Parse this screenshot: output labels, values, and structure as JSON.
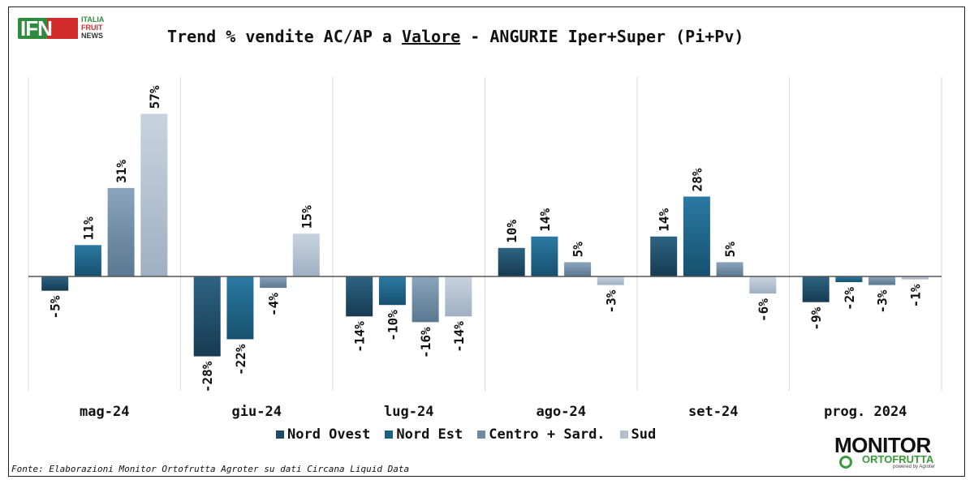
{
  "header": {
    "title_prefix": "Trend % vendite AC/AP a ",
    "title_underlined": "Valore",
    "title_suffix": " - ANGURIE Iper+Super (Pi+Pv)"
  },
  "logos": {
    "ifn_letters": "IFN",
    "ifn_line1": "ITALIA",
    "ifn_line2": "FRUIT",
    "ifn_line3": "NEWS",
    "monitor_line1": "MONITOR",
    "monitor_line2": "ORTOFRUTTA",
    "monitor_line3": "powered by Agroter"
  },
  "source": "Fonte: Elaborazioni Monitor Ortofrutta Agroter su dati Circana Liquid Data",
  "colors": {
    "nord_ovest": "#1e4a66",
    "nord_est": "#1c5f82",
    "centro_sard": "#6d8aa3",
    "sud": "#b3c0cf"
  },
  "chart_data": {
    "type": "bar",
    "categories": [
      "mag-24",
      "giu-24",
      "lug-24",
      "ago-24",
      "set-24",
      "prog. 2024"
    ],
    "series": [
      {
        "name": "Nord Ovest",
        "values": [
          -5,
          -28,
          -14,
          10,
          14,
          -9
        ],
        "labels": [
          "-5%",
          "-28%",
          "-14%",
          "10%",
          "14%",
          "-9%"
        ]
      },
      {
        "name": "Nord Est",
        "values": [
          11,
          -22,
          -10,
          14,
          28,
          -2
        ],
        "labels": [
          "11%",
          "-22%",
          "-10%",
          "14%",
          "28%",
          "-2%"
        ]
      },
      {
        "name": "Centro + Sard.",
        "values": [
          31,
          -4,
          -16,
          5,
          5,
          -3
        ],
        "labels": [
          "31%",
          "-4%",
          "-16%",
          "5%",
          "5%",
          "-3%"
        ]
      },
      {
        "name": "Sud",
        "values": [
          57,
          15,
          -14,
          -3,
          -6,
          -1
        ],
        "labels": [
          "57%",
          "15%",
          "-14%",
          "-3%",
          "-6%",
          "-1%"
        ]
      }
    ],
    "ylim": [
      -40,
      70
    ],
    "grid": "vertical",
    "legend": "bottom"
  }
}
